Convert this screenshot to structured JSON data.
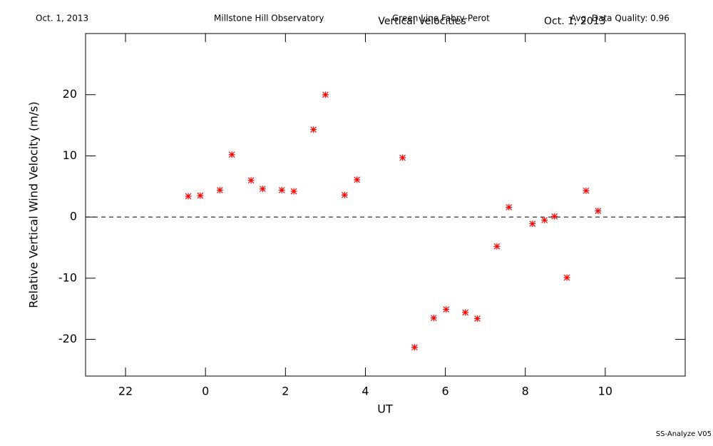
{
  "chart_data": {
    "type": "scatter",
    "date": "Oct. 1, 2013",
    "observatory": "Millstone Hill Observatory",
    "instrument": "Green Line Fabry-Perot",
    "title": "Vertical Velocities",
    "title_date": "Oct. 1, 2013",
    "quality": "Avg. Data Quality: 0.96",
    "footer": "SS-Analyze V05",
    "x_label": "UT",
    "y_label": "Relative Vertical Wind Velocity (m/s)",
    "color": "#ff0000",
    "zero_line": 0,
    "xlim": [
      -3,
      12
    ],
    "xticks": [
      {
        "value": -2,
        "label": "22"
      },
      0,
      2,
      4,
      6,
      8,
      10
    ],
    "ylim": [
      -26,
      30
    ],
    "yticks": [
      -20,
      -10,
      0,
      10,
      20
    ],
    "x": [
      -0.43,
      -0.13,
      0.36,
      0.66,
      1.14,
      1.43,
      1.91,
      2.21,
      2.7,
      3.0,
      3.48,
      3.79,
      4.93,
      5.23,
      5.71,
      6.02,
      6.5,
      6.8,
      7.29,
      7.59,
      8.18,
      8.48,
      8.73,
      9.04,
      9.52,
      9.82
    ],
    "values": [
      3.4,
      3.5,
      4.4,
      10.2,
      6.0,
      4.6,
      4.4,
      4.2,
      14.3,
      20.0,
      3.6,
      6.1,
      9.7,
      -21.3,
      -16.5,
      -15.1,
      -15.6,
      -16.6,
      -4.8,
      1.6,
      -1.1,
      -0.5,
      0.1,
      -9.9,
      4.3,
      1.0
    ]
  }
}
